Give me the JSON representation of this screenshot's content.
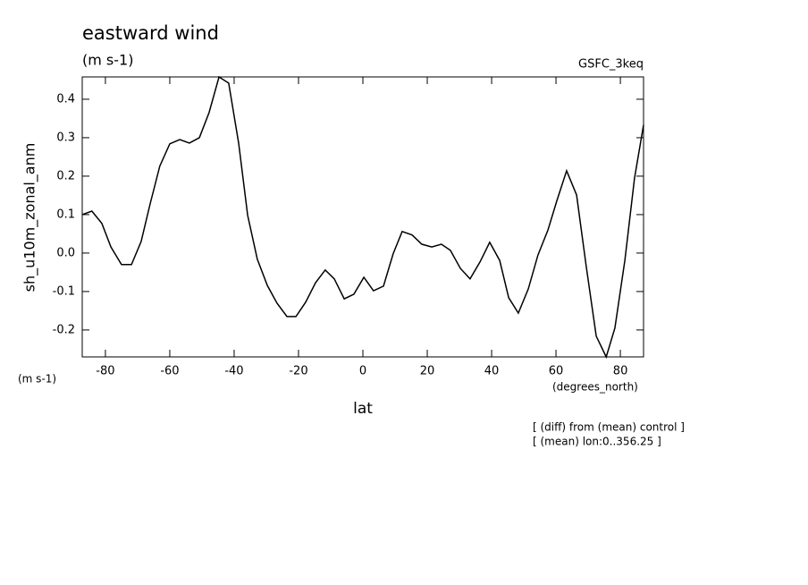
{
  "chart_data": {
    "type": "line",
    "title": "eastward wind",
    "subtitle": "(m s-1)",
    "dataset_label": "GSFC_3keq",
    "y_label": "sh_u10m_zonal_anm",
    "y_units": "(m s-1)",
    "x_units": "(degrees_north)",
    "x_label": "lat",
    "notes": [
      "[ (diff) from (mean) control ]",
      "[ (mean) lon:0..356.25 ]"
    ],
    "x": [
      -87.2,
      -84.2,
      -81.1,
      -78.3,
      -75,
      -71.9,
      -68.9,
      -66.1,
      -63.1,
      -60,
      -56.9,
      -53.9,
      -50.8,
      -47.8,
      -44.7,
      -41.7,
      -38.6,
      -35.8,
      -32.8,
      -29.7,
      -26.7,
      -23.6,
      -20.8,
      -17.8,
      -14.7,
      -11.7,
      -8.9,
      -5.8,
      -2.8,
      0.3,
      3.3,
      6.4,
      9.4,
      12.2,
      15.3,
      18.3,
      21.4,
      24.4,
      27.2,
      30.3,
      33.3,
      36.4,
      39.4,
      42.5,
      45.3,
      48.3,
      51.4,
      54.4,
      57.5,
      60.3,
      63.3,
      66.4,
      69.4,
      72.5,
      75.6,
      78.3,
      81.4,
      84.4,
      87.2
    ],
    "series": [
      {
        "color": "#000000",
        "values": [
          0.1,
          0.109,
          0.077,
          0.016,
          -0.03,
          -0.03,
          0.03,
          0.128,
          0.226,
          0.284,
          0.295,
          0.286,
          0.3,
          0.365,
          0.458,
          0.442,
          0.286,
          0.098,
          -0.016,
          -0.084,
          -0.13,
          -0.165,
          -0.165,
          -0.128,
          -0.077,
          -0.044,
          -0.067,
          -0.119,
          -0.107,
          -0.063,
          -0.098,
          -0.086,
          -0.002,
          0.056,
          0.047,
          0.023,
          0.016,
          0.023,
          0.007,
          -0.04,
          -0.067,
          -0.023,
          0.028,
          -0.019,
          -0.116,
          -0.156,
          -0.093,
          -0.005,
          0.06,
          0.137,
          0.214,
          0.151,
          -0.035,
          -0.216,
          -0.27,
          -0.195,
          -0.019,
          0.195,
          0.333
        ]
      }
    ],
    "xlim": [
      -87.2,
      87.2
    ],
    "ylim": [
      -0.27,
      0.458
    ],
    "xticks": [
      -80,
      -60,
      -40,
      -20,
      0,
      20,
      40,
      60,
      80
    ],
    "yticks": [
      -0.2,
      -0.1,
      {
        "value": 0,
        "label": "0.0"
      },
      0.1,
      0.2,
      0.3,
      0.4
    ]
  }
}
